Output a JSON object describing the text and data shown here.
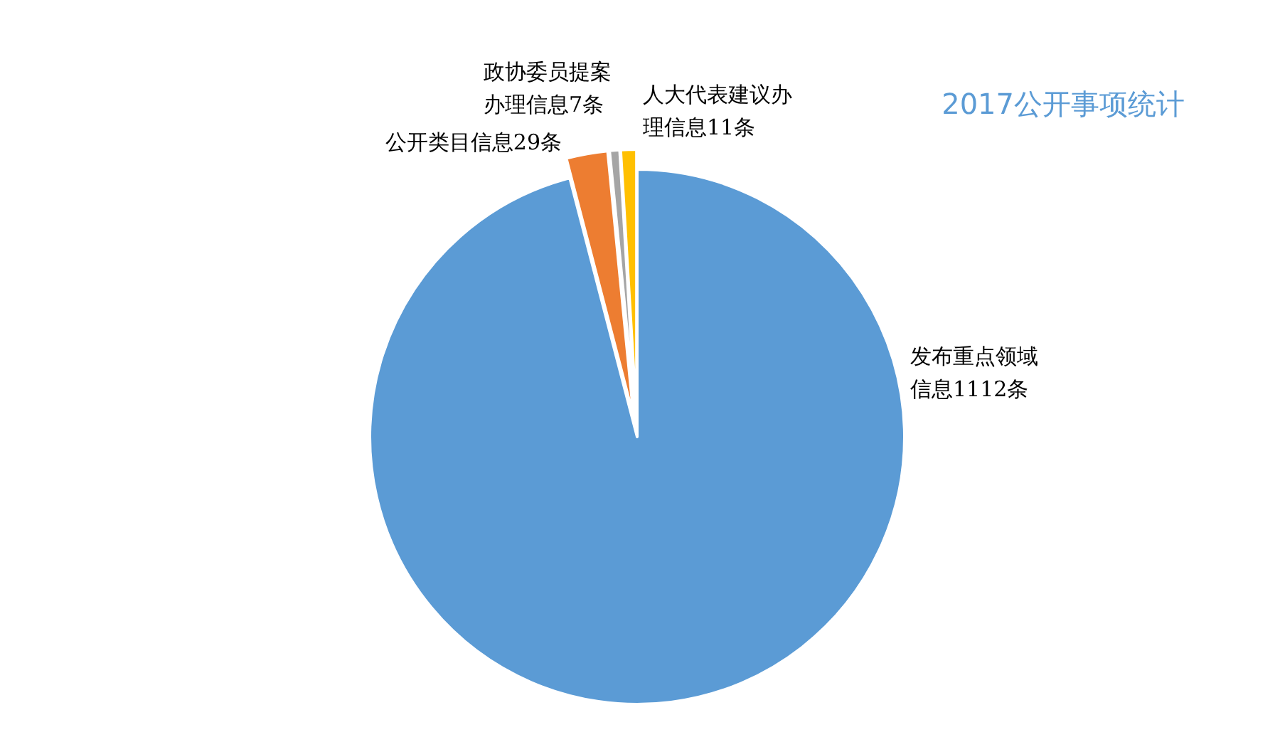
{
  "chart_data": {
    "type": "pie",
    "title": "2017公开事项统计",
    "categories": [
      "发布重点领域信息1112条",
      "公开类目信息29条",
      "政协委员提案办理信息7条",
      "人大代表建议办理信息11条"
    ],
    "values": [
      1112,
      29,
      7,
      11
    ],
    "colors": [
      "#5b9bd5",
      "#ed7d31",
      "#a5a5a5",
      "#ffc000"
    ],
    "legend": false
  }
}
